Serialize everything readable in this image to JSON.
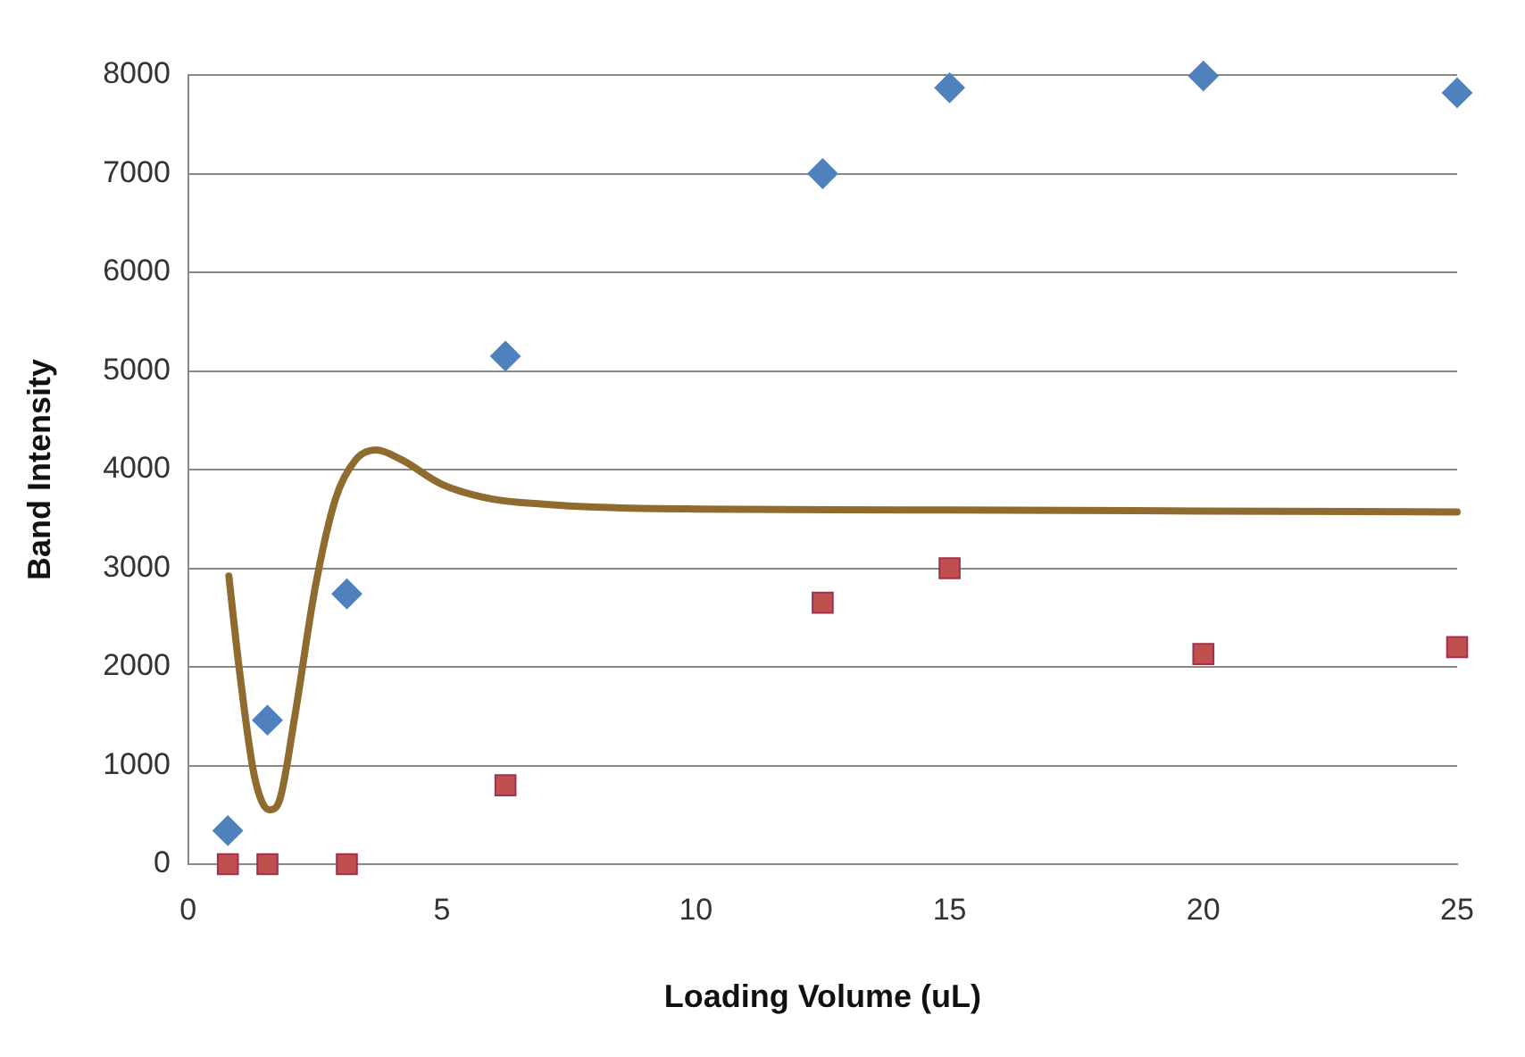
{
  "chart_data": {
    "type": "scatter",
    "xlabel": "Loading Volume (uL)",
    "ylabel": "Band Intensity",
    "xlim": [
      0,
      25
    ],
    "xticks": [
      0,
      5,
      10,
      15,
      20,
      25
    ],
    "ylim": [
      0,
      8000
    ],
    "yticks": [
      0,
      1000,
      2000,
      3000,
      4000,
      5000,
      6000,
      7000,
      8000
    ],
    "grid": "y",
    "legend": false,
    "series": [
      {
        "type": "scatter",
        "marker": "diamond",
        "color": "#4f81bd",
        "x": [
          0.78,
          1.56,
          3.125,
          6.25,
          12.5,
          15,
          20,
          25
        ],
        "values": [
          340,
          1460,
          2740,
          5150,
          7000,
          7870,
          7990,
          7820
        ]
      },
      {
        "type": "scatter",
        "marker": "square",
        "color": "#c0504d",
        "x": [
          0.78,
          1.56,
          3.125,
          6.25,
          12.5,
          15,
          20,
          25
        ],
        "values": [
          0,
          0,
          0,
          800,
          2650,
          3000,
          2130,
          2200
        ]
      },
      {
        "type": "line",
        "marker": "none",
        "color": "#8f6b30",
        "x": [
          0.8,
          1.0,
          1.3,
          1.6,
          1.8,
          2.1,
          2.5,
          2.9,
          3.3,
          3.7,
          4.2,
          5,
          6,
          7,
          8,
          10,
          15,
          20,
          25
        ],
        "values": [
          2920,
          2000,
          900,
          550,
          650,
          1500,
          2800,
          3700,
          4100,
          4200,
          4100,
          3850,
          3700,
          3650,
          3620,
          3600,
          3590,
          3580,
          3570
        ]
      }
    ]
  }
}
